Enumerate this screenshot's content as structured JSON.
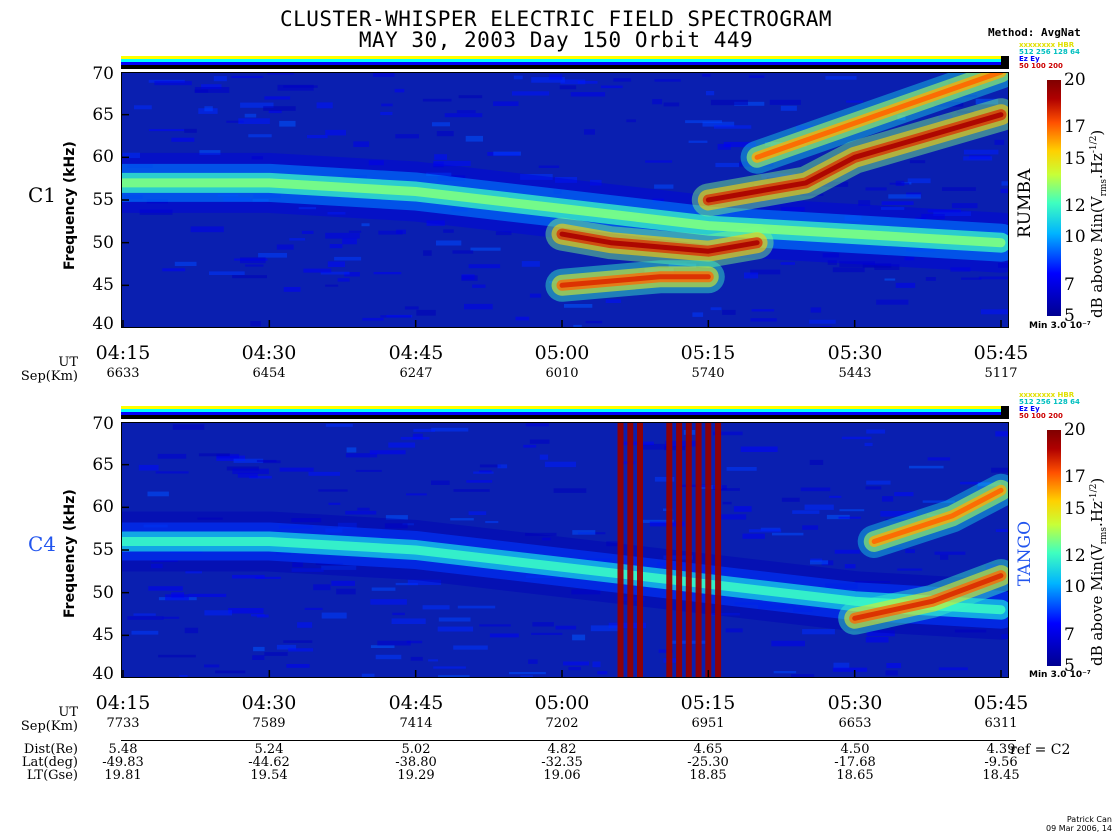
{
  "title": {
    "line1": "CLUSTER-WHISPER ELECTRIC FIELD SPECTROGRAM",
    "line2": "MAY 30, 2003 Day 150      Orbit 449"
  },
  "method": "Method: AvgNat",
  "status_legend": {
    "row1": "xxxxxxxx HBR",
    "row2": "512  256  128  64",
    "row3": "Ez    Ey",
    "row4": "50    100  200"
  },
  "colorbar": {
    "label": "dB above Min(Vrms.Hz-1/2)",
    "ticks": [
      "20",
      "17",
      "15",
      "12",
      "10",
      "7",
      "5"
    ],
    "min_label": "Min 3.0 10⁻⁷",
    "range": [
      5,
      20
    ]
  },
  "x_labels": {
    "ut": "UT",
    "sep": "Sep(Km)",
    "dist": "Dist(Re)",
    "lat": "Lat(deg)",
    "lt": "LT(Gse)"
  },
  "ephemeris": {
    "dist": [
      "5.48",
      "5.24",
      "5.02",
      "4.82",
      "4.65",
      "4.50",
      "4.39"
    ],
    "lat": [
      "-49.83",
      "-44.62",
      "-38.80",
      "-32.35",
      "-25.30",
      "-17.68",
      "-9.56"
    ],
    "lt": [
      "19.81",
      "19.54",
      "19.29",
      "19.06",
      "18.85",
      "18.65",
      "18.45"
    ],
    "ref": "ref = C2"
  },
  "credit": {
    "line1": "Patrick Can",
    "line2": "09 Mar 2006, 14"
  },
  "colors": {
    "c4_label": "#2255ee",
    "background": "#0a1fb0"
  },
  "chart_data": [
    {
      "type": "heatmap",
      "panel": "C1",
      "title": "",
      "spacecraft_name": "RUMBA",
      "ylabel": "Frequency (kHz)",
      "xlabel": "UT",
      "yticks": [
        "70",
        "65",
        "60",
        "55",
        "50",
        "45",
        "40"
      ],
      "ylim": [
        40,
        70
      ],
      "xticks": [
        "04:15",
        "04:30",
        "04:45",
        "05:00",
        "05:15",
        "05:30",
        "05:45"
      ],
      "sep_km": [
        "6633",
        "6454",
        "6247",
        "6010",
        "5740",
        "5443",
        "5117"
      ],
      "zlim": [
        5,
        20
      ],
      "bands": [
        {
          "points": [
            [
              "04:15",
              57
            ],
            [
              "04:30",
              57
            ],
            [
              "04:45",
              56
            ],
            [
              "05:00",
              54
            ],
            [
              "05:15",
              52
            ],
            [
              "05:30",
              51
            ],
            [
              "05:45",
              50
            ]
          ],
          "level": 13
        },
        {
          "points": [
            [
              "05:00",
              51
            ],
            [
              "05:05",
              50
            ],
            [
              "05:15",
              49
            ],
            [
              "05:20",
              50
            ]
          ],
          "level": 19
        },
        {
          "points": [
            [
              "05:00",
              45
            ],
            [
              "05:10",
              46
            ],
            [
              "05:15",
              46
            ]
          ],
          "level": 18
        },
        {
          "points": [
            [
              "05:15",
              55
            ],
            [
              "05:25",
              57
            ],
            [
              "05:30",
              60
            ],
            [
              "05:45",
              65
            ]
          ],
          "level": 19
        },
        {
          "points": [
            [
              "05:20",
              60
            ],
            [
              "05:35",
              66
            ],
            [
              "05:45",
              70
            ]
          ],
          "level": 17
        }
      ]
    },
    {
      "type": "heatmap",
      "panel": "C4",
      "title": "",
      "spacecraft_name": "TANGO",
      "ylabel": "Frequency (kHz)",
      "xlabel": "UT",
      "yticks": [
        "70",
        "65",
        "60",
        "55",
        "50",
        "45",
        "40"
      ],
      "ylim": [
        40,
        70
      ],
      "xticks": [
        "04:15",
        "04:30",
        "04:45",
        "05:00",
        "05:15",
        "05:30",
        "05:45"
      ],
      "sep_km": [
        "7733",
        "7589",
        "7414",
        "7202",
        "6951",
        "6653",
        "6311"
      ],
      "zlim": [
        5,
        20
      ],
      "bands": [
        {
          "points": [
            [
              "04:15",
              56
            ],
            [
              "04:30",
              56
            ],
            [
              "04:45",
              55
            ],
            [
              "05:00",
              53
            ],
            [
              "05:15",
              51
            ],
            [
              "05:30",
              49
            ],
            [
              "05:45",
              48
            ]
          ],
          "level": 12
        },
        {
          "points": [
            [
              "05:30",
              47
            ],
            [
              "05:38",
              49
            ],
            [
              "05:45",
              52
            ]
          ],
          "level": 18
        },
        {
          "points": [
            [
              "05:32",
              56
            ],
            [
              "05:40",
              59
            ],
            [
              "05:45",
              62
            ]
          ],
          "level": 17
        }
      ],
      "broadband_bursts_ut": [
        "05:06",
        "05:07",
        "05:08",
        "05:11",
        "05:12",
        "05:13",
        "05:14",
        "05:15",
        "05:16"
      ]
    }
  ]
}
